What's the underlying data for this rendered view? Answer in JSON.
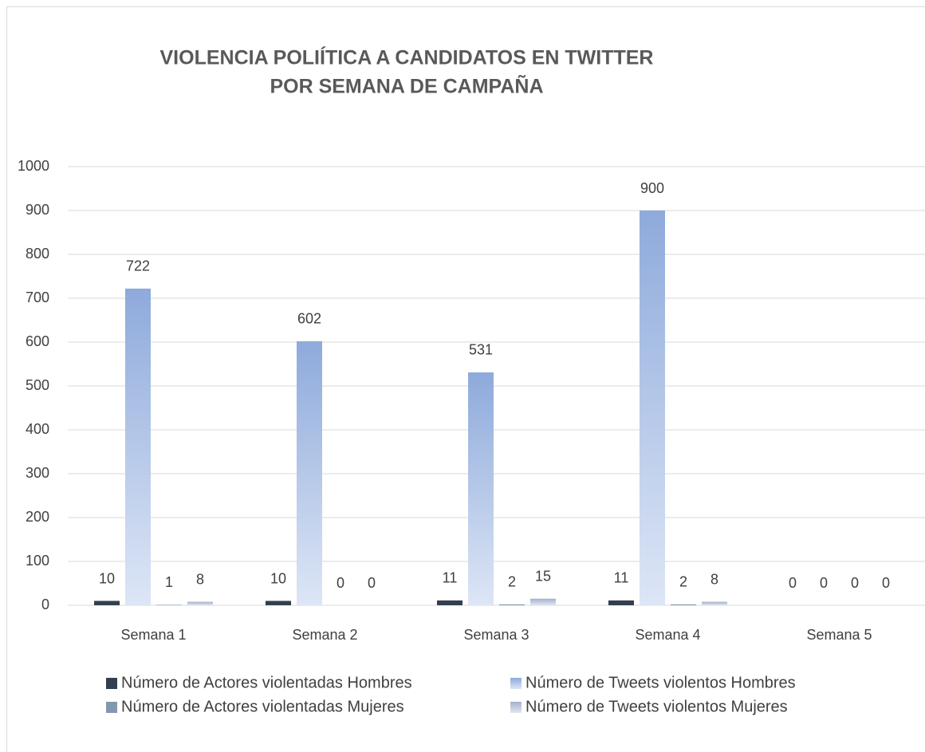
{
  "chart_data": {
    "type": "bar",
    "title": [
      "VIOLENCIA POLIÍTICA A CANDIDATOS EN TWITTER",
      "POR SEMANA DE CAMPAÑA"
    ],
    "categories": [
      "Semana  1",
      "Semana  2",
      "Semana  3",
      "Semana  4",
      "Semana  5"
    ],
    "series": [
      {
        "name": "Número de Actores violentadas Hombres",
        "color": "#333f50",
        "values": [
          10,
          10,
          11,
          11,
          0
        ]
      },
      {
        "name": "Número de Tweets violentos Hombres",
        "color": [
          "#8eaadb",
          "#dde6f6"
        ],
        "values": [
          722,
          602,
          531,
          900,
          0
        ]
      },
      {
        "name": "Número de Actores violentadas Mujeres",
        "color": "#8497b0",
        "values": [
          1,
          0,
          2,
          2,
          0
        ]
      },
      {
        "name": "Número de Tweets violentos Mujeres",
        "color": [
          "#a4b0cc",
          "#e2e6f0"
        ],
        "values": [
          8,
          0,
          15,
          8,
          0
        ]
      }
    ],
    "ylim": [
      0,
      1000
    ],
    "yticks": [
      0,
      100,
      200,
      300,
      400,
      500,
      600,
      700,
      800,
      900,
      1000
    ],
    "grid": true,
    "legend": "bottom"
  }
}
